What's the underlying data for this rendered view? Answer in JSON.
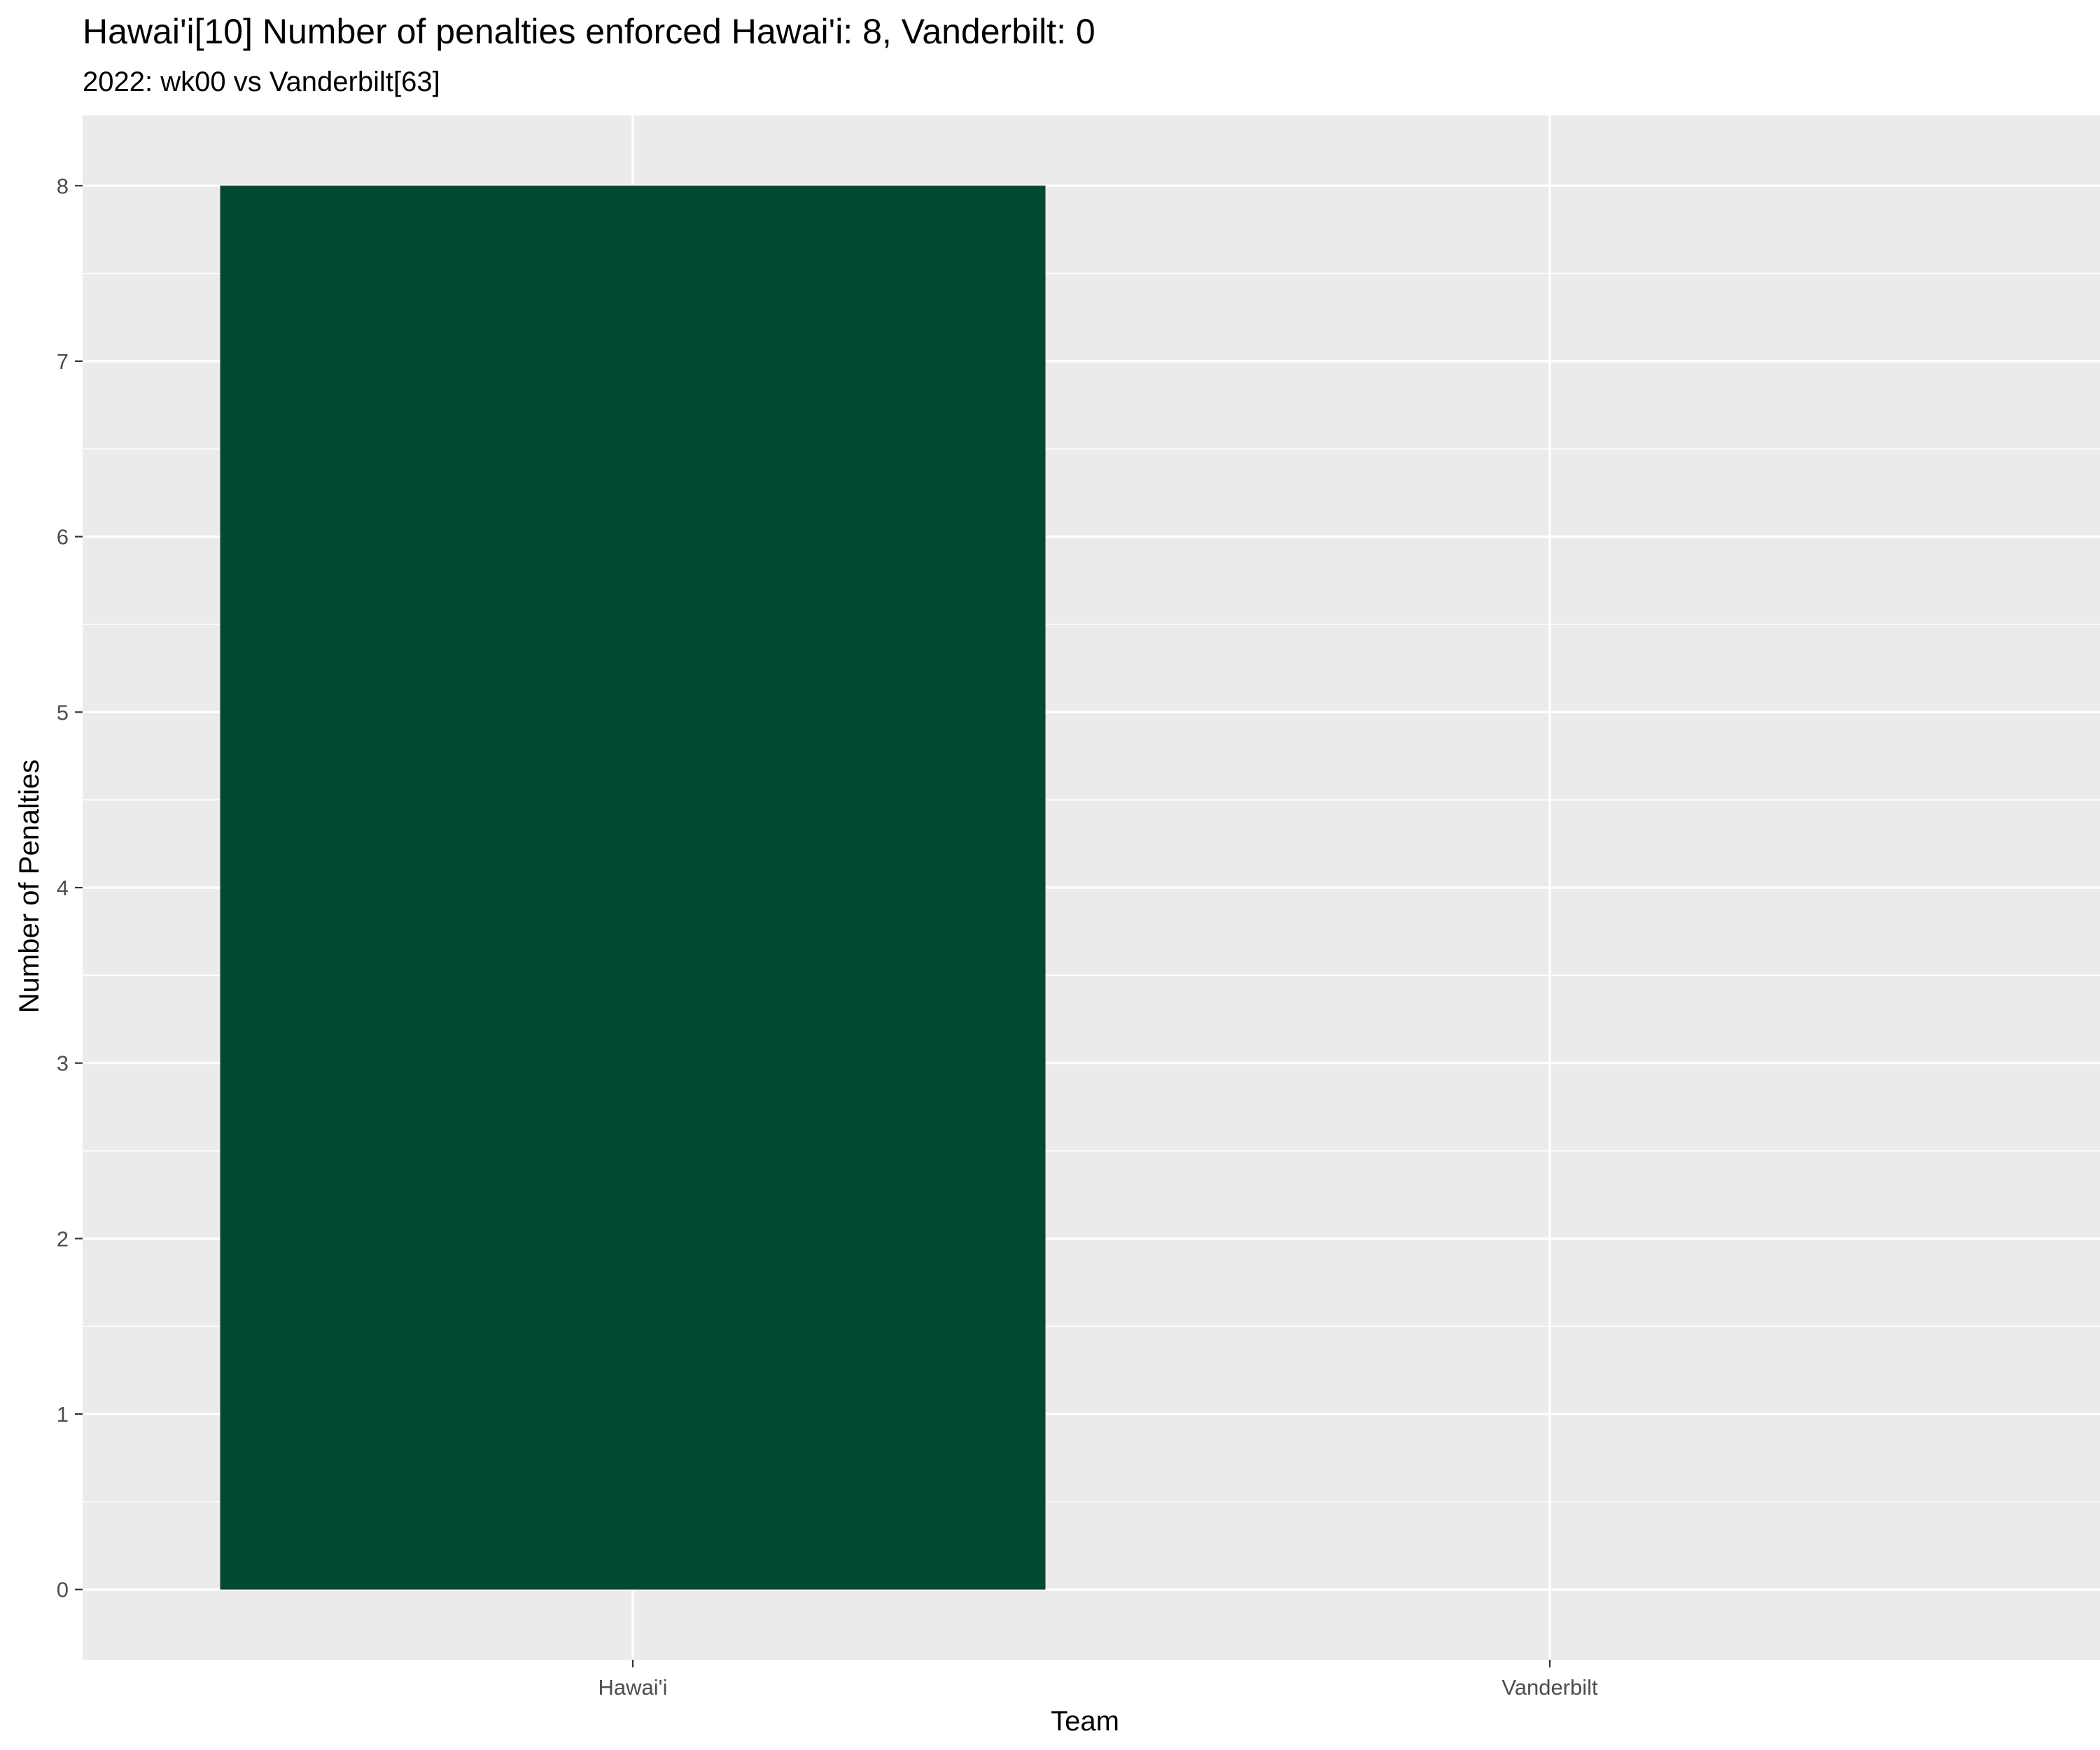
{
  "chart_data": {
    "type": "bar",
    "title": "Hawai'i[10] Number of penalties enforced Hawai'i: 8, Vanderbilt: 0",
    "subtitle": "2022: wk00 vs Vanderbilt[63]",
    "xlabel": "Team",
    "ylabel": "Number of Penalties",
    "categories": [
      "Hawai'i",
      "Vanderbilt"
    ],
    "values": [
      8,
      0
    ],
    "ylim": [
      -0.4,
      8.4
    ],
    "yticks": [
      0,
      1,
      2,
      3,
      4,
      5,
      6,
      7,
      8
    ],
    "grid": true,
    "legend": "none",
    "colors": {
      "bar": "#034833",
      "panel": "#ebebeb",
      "grid": "#ffffff",
      "tick_text": "#4d4d4d",
      "tick_mark": "#333333"
    }
  }
}
